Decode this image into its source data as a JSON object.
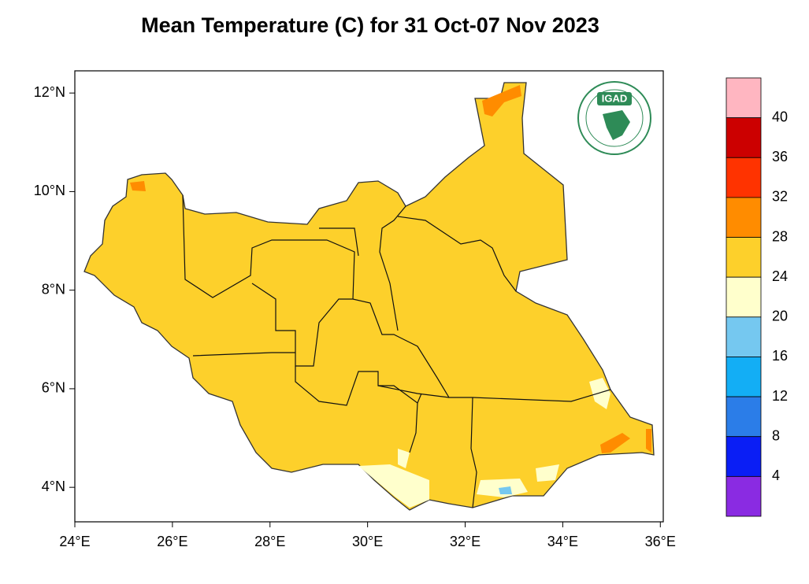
{
  "title": "Mean Temperature (C) for 31 Oct-07 Nov 2023",
  "map": {
    "xlim": [
      24,
      36.06
    ],
    "ylim": [
      3.3,
      12.45
    ],
    "xticks": [
      {
        "value": 24,
        "label": "24°E"
      },
      {
        "value": 26,
        "label": "26°E"
      },
      {
        "value": 28,
        "label": "28°E"
      },
      {
        "value": 30,
        "label": "30°E"
      },
      {
        "value": 32,
        "label": "32°E"
      },
      {
        "value": 34,
        "label": "34°E"
      },
      {
        "value": 36,
        "label": "36°E"
      }
    ],
    "yticks": [
      {
        "value": 4,
        "label": "4°N"
      },
      {
        "value": 6,
        "label": "6°N"
      },
      {
        "value": 8,
        "label": "8°N"
      },
      {
        "value": 10,
        "label": "10°N"
      },
      {
        "value": 12,
        "label": "12°N"
      }
    ],
    "logo": "IGAD"
  },
  "legend": {
    "colors": [
      "#ffb6c1",
      "#cc0000",
      "#ff3300",
      "#ff8c00",
      "#fdd02b",
      "#ffffcc",
      "#75c8f0",
      "#13aef5",
      "#2b7de8",
      "#0a1ef5",
      "#8a2be2"
    ],
    "levels": [
      40,
      36,
      32,
      28,
      24,
      20,
      16,
      12,
      8,
      4
    ]
  }
}
